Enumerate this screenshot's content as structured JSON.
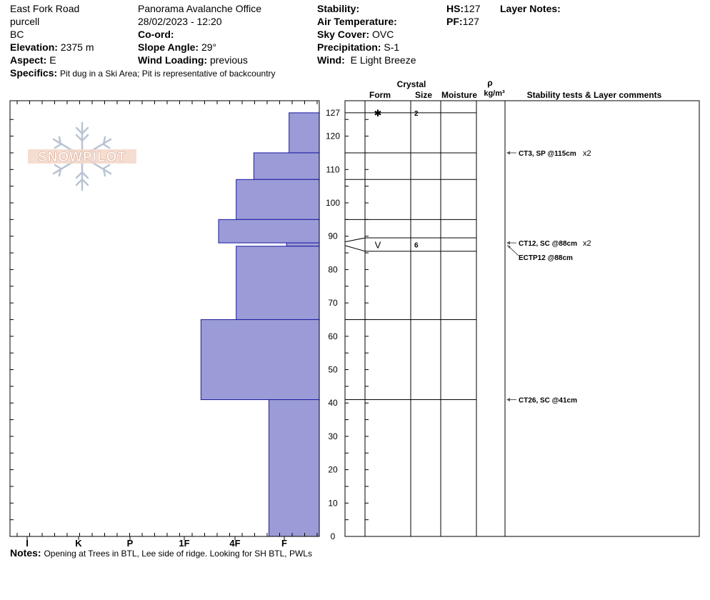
{
  "header": {
    "location": "East Fork Road",
    "range": "purcell",
    "state": "BC",
    "elevation_label": "Elevation:",
    "elevation_value": "2375 m",
    "aspect_label": "Aspect:",
    "aspect_value": "E",
    "specifics_label": "Specifics:",
    "specifics_value": "Pit dug in a Ski Area; Pit is representative of backcountry",
    "observer": "Panorama Avalanche Office",
    "datetime": "28/02/2023 - 12:20",
    "coord_label": "Co-ord:",
    "slope_label": "Slope Angle:",
    "slope_value": "29°",
    "wind_loading_label": "Wind Loading:",
    "wind_loading_value": "previous",
    "stability_label": "Stability:",
    "air_temp_label": "Air Temperature:",
    "sky_cover_label": "Sky Cover:",
    "sky_cover_value": "OVC",
    "precip_label": "Precipitation:",
    "precip_value": "S-1",
    "wind_label": "Wind:",
    "wind_value": "E Light Breeze",
    "hs_label": "HS:",
    "hs_value": "127",
    "pf_label": "PF:",
    "pf_value": "127",
    "layer_notes_label": "Layer Notes:"
  },
  "notes": {
    "label": "Notes:",
    "value": "Opening at Trees in BTL, Lee side of ridge.  Looking for SH BTL, PWLs"
  },
  "logo": {
    "text": "SNOWPILOT"
  },
  "table_headers": {
    "crystal": "Crystal",
    "form": "Form",
    "size": "Size",
    "moisture": "Moisture",
    "rho": "ρ",
    "density_unit": "kg/m³",
    "comments": "Stability tests & Layer comments"
  },
  "colors": {
    "hardness_fill": "#9b9bd7",
    "hardness_stroke": "#1a1aa0",
    "axis": "#000000"
  },
  "chart_data": {
    "type": "bar",
    "orientation": "horizontal",
    "y_axis": {
      "min": 0,
      "max": 127,
      "ticks": [
        0,
        10,
        20,
        30,
        40,
        50,
        60,
        70,
        80,
        90,
        100,
        110,
        120,
        127
      ]
    },
    "x_axis": {
      "categories": [
        "I",
        "K",
        "P",
        "1F",
        "4F",
        "F"
      ]
    },
    "hardness_layers": [
      {
        "bottom": 115,
        "top": 127,
        "hardness": 0.6
      },
      {
        "bottom": 107,
        "top": 115,
        "hardness": 1.3
      },
      {
        "bottom": 95,
        "top": 107,
        "hardness": 1.65
      },
      {
        "bottom": 88,
        "top": 95,
        "hardness": 2.0
      },
      {
        "bottom": 87,
        "top": 88,
        "hardness": 0.65
      },
      {
        "bottom": 65,
        "top": 87,
        "hardness": 1.65
      },
      {
        "bottom": 41,
        "top": 65,
        "hardness": 2.35
      },
      {
        "bottom": 0,
        "top": 41,
        "hardness": 1.0
      }
    ],
    "layer_boundaries": [
      127,
      115,
      107,
      95,
      89.5,
      85.5,
      65,
      41
    ],
    "crystals": [
      {
        "height": 127,
        "form": "✱",
        "size": "2"
      },
      {
        "height": 87.5,
        "form": "V",
        "size": "6"
      }
    ],
    "stability_tests": [
      {
        "height": 115,
        "text": "CT3, SP @115cm",
        "count": "x2",
        "arrow": true
      },
      {
        "height": 88,
        "text": "CT12, SC @88cm",
        "count": "x2",
        "arrow": true
      },
      {
        "height": 88,
        "text": "ECTP12 @88cm",
        "count": "",
        "arrow": true,
        "second_line": true
      },
      {
        "height": 41,
        "text": "CT26, SC @41cm",
        "count": "",
        "arrow": true
      }
    ]
  }
}
